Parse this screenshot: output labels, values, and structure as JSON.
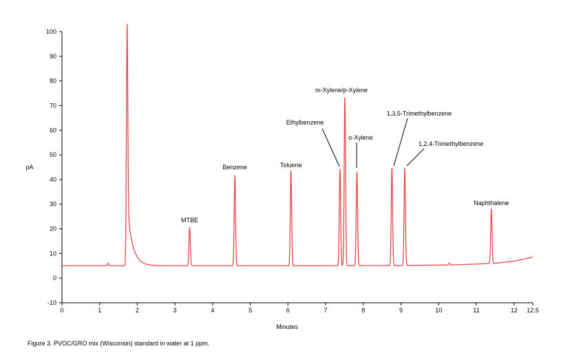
{
  "chart_data": {
    "type": "line",
    "title": "",
    "xlabel": "Minutes",
    "ylabel": "pA",
    "xlim": [
      0,
      12.5
    ],
    "ylim": [
      -10,
      100
    ],
    "x_ticks": [
      "0",
      "1",
      "2",
      "3",
      "4",
      "5",
      "6",
      "7",
      "8",
      "9",
      "10",
      "11",
      "12",
      "12.5"
    ],
    "x_tick_values": [
      0,
      1,
      2,
      3,
      4,
      5,
      6,
      7,
      8,
      9,
      10,
      11,
      12,
      12.5
    ],
    "y_ticks": [
      "-10",
      "0",
      "10",
      "20",
      "30",
      "40",
      "50",
      "60",
      "70",
      "80",
      "90",
      "100"
    ],
    "y_tick_values": [
      -10,
      0,
      10,
      20,
      30,
      40,
      50,
      60,
      70,
      80,
      90,
      100
    ],
    "grid": false,
    "line_color": "#e8474c",
    "baseline": [
      {
        "x": 0,
        "y": 5.0
      },
      {
        "x": 1.6,
        "y": 5.0
      },
      {
        "x": 2.5,
        "y": 5.0
      },
      {
        "x": 6.0,
        "y": 5.0
      },
      {
        "x": 9.0,
        "y": 5.1
      },
      {
        "x": 10.5,
        "y": 5.4
      },
      {
        "x": 11.5,
        "y": 6.0
      },
      {
        "x": 12.0,
        "y": 6.9
      },
      {
        "x": 12.5,
        "y": 8.5
      }
    ],
    "peaks": [
      {
        "rt": 1.73,
        "height": 103,
        "label": "",
        "tail": 0.14
      },
      {
        "rt": 3.39,
        "height": 20.5,
        "label": "MTBE"
      },
      {
        "rt": 4.59,
        "height": 41.5,
        "label": "Benzene"
      },
      {
        "rt": 6.08,
        "height": 43.5,
        "label": "Toluene"
      },
      {
        "rt": 7.38,
        "height": 44,
        "label": "Ethylbenzene"
      },
      {
        "rt": 7.51,
        "height": 73,
        "label": "m-Xylene/p-Xylene"
      },
      {
        "rt": 7.83,
        "height": 43,
        "label": "o-Xylene"
      },
      {
        "rt": 8.76,
        "height": 44.5,
        "label": "1,3,5-Trimethylbenzene"
      },
      {
        "rt": 9.1,
        "height": 44.5,
        "label": "1,2,4-Trimethylbenzene"
      },
      {
        "rt": 11.4,
        "height": 28,
        "label": "Naphthalene"
      }
    ],
    "minor_peaks": [
      {
        "rt": 1.23,
        "height": 6.0
      },
      {
        "rt": 10.28,
        "height": 6.0
      }
    ]
  },
  "caption": "Figure 3. PVOC/GRO mix (Wisconsin) standard in water at 1 ppm."
}
